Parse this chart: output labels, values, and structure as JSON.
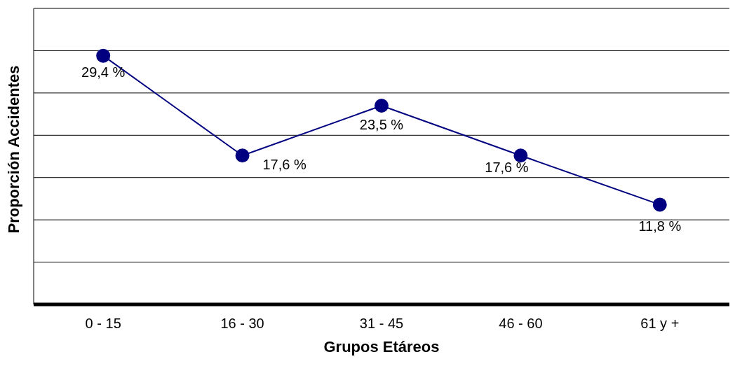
{
  "chart_data": {
    "type": "line",
    "xlabel": "Grupos Etáreos",
    "ylabel": "Proporción Accidentes",
    "categories": [
      "0 - 15",
      "16 - 30",
      "31 - 45",
      "46 - 60",
      "61 y +"
    ],
    "series": [
      {
        "color": "#000080",
        "values": [
          29.4,
          17.6,
          23.5,
          17.6,
          11.8
        ],
        "value_labels": [
          "29,4 %",
          "17,6 %",
          "23,5 %",
          "17,6 %",
          "11,8 %"
        ]
      }
    ],
    "ylim": [
      0,
      35
    ],
    "yticks": [
      {
        "value": 0,
        "label": null
      },
      {
        "value": 5,
        "label": null
      },
      {
        "value": 10,
        "label": null
      },
      {
        "value": 15,
        "label": null
      },
      {
        "value": 20,
        "label": null
      },
      {
        "value": 25,
        "label": null
      },
      {
        "value": 30,
        "label": null
      },
      {
        "value": 35,
        "label": null
      }
    ],
    "grid": "y",
    "marker": "circle",
    "line_style": "solid",
    "legend": false
  }
}
